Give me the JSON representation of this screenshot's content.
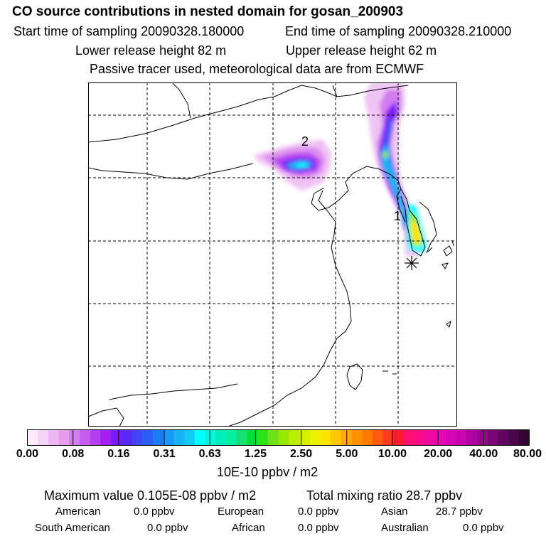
{
  "title": "CO  source contributions in nested domain for gosan_200903",
  "sampling": {
    "start": "Start time of sampling 20090328.180000",
    "end": "End time of sampling 20090328.210000"
  },
  "release": {
    "lower": "Lower release height   82 m",
    "upper": "Upper release height   62 m"
  },
  "note": "Passive tracer used, meteorological data are from ECMWF",
  "map": {
    "label_1": "1",
    "label_2": "2",
    "receptor_icon": "asterisk-star-icon"
  },
  "colorbar": {
    "ticks": [
      "0.00",
      "0.08",
      "0.16",
      "0.31",
      "0.63",
      "1.25",
      "2.50",
      "5.00",
      "10.00",
      "20.00",
      "40.00",
      "80.00"
    ],
    "colors": [
      "#fbeafb",
      "#f4d3f6",
      "#edb8f2",
      "#e49ced",
      "#d27df0",
      "#c75cf0",
      "#b43df0",
      "#a21ff0",
      "#7a1cf5",
      "#5a2af5",
      "#4045f5",
      "#2a5ef5",
      "#1a7cf5",
      "#1a97f5",
      "#18b2f5",
      "#12caf5",
      "#00ffff",
      "#00f5d8",
      "#00f0bc",
      "#00f0a0",
      "#18e070",
      "#00e03c",
      "#30e018",
      "#70e018",
      "#96e800",
      "#b8ec00",
      "#d4f000",
      "#eaf200",
      "#ffe400",
      "#ffc800",
      "#ffac00",
      "#ff9000",
      "#ff7a00",
      "#ff5a10",
      "#ff3a20",
      "#ff1a30",
      "#ff1070",
      "#f80c88",
      "#f008a0",
      "#e606b4",
      "#d804b8",
      "#c804b0",
      "#b004a0",
      "#980490",
      "#780478",
      "#600460",
      "#4a044a",
      "#340434"
    ],
    "unit": "10E-10 ppbv / m2"
  },
  "summary": {
    "max": "Maximum value  0.105E-08 ppbv / m2",
    "total": "Total mixing ratio       28.7 ppbv"
  },
  "regions": {
    "american_label": "American",
    "american_value": "0.0 ppbv",
    "european_label": "European",
    "european_value": "0.0 ppbv",
    "asian_label": "Asian",
    "asian_value": "28.7 ppbv",
    "south_american_label": "South American",
    "south_american_value": "0.0 ppbv",
    "african_label": "African",
    "african_value": "0.0 ppbv",
    "australian_label": "Australian",
    "australian_value": "0.0 ppbv"
  }
}
